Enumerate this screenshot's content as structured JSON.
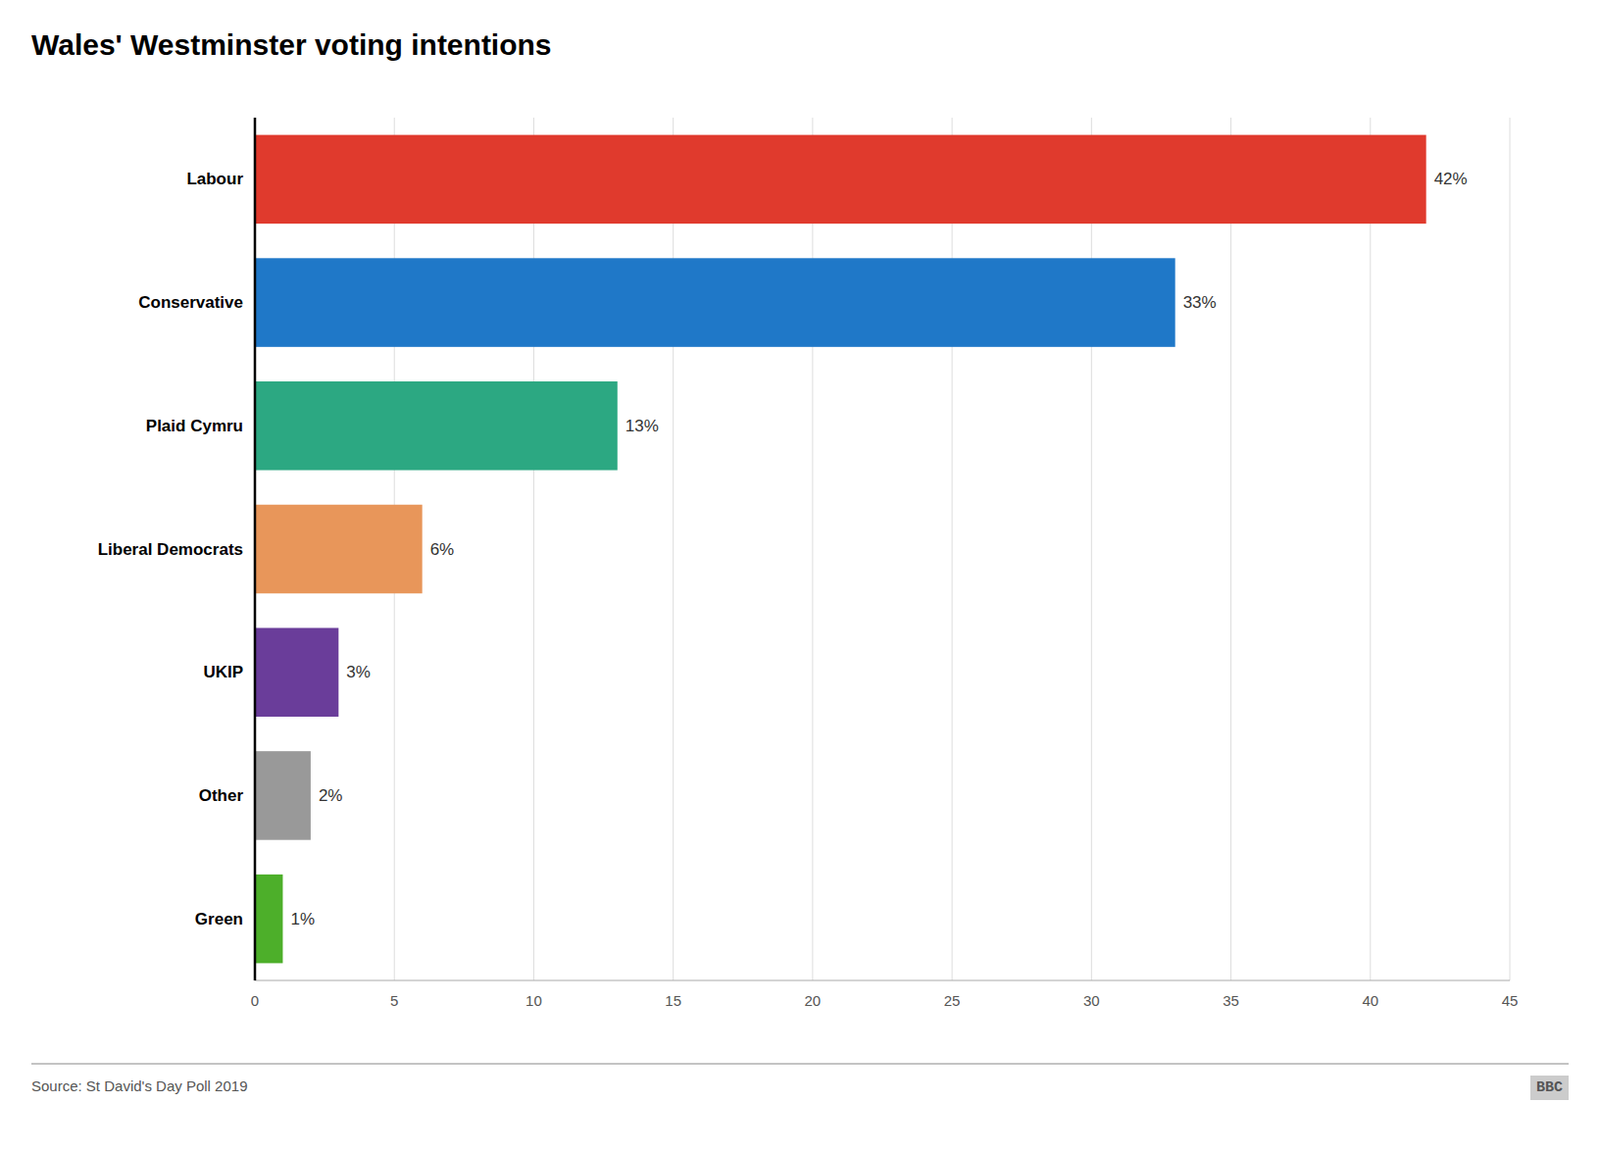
{
  "chart_data": {
    "type": "bar",
    "orientation": "horizontal",
    "title": "Wales' Westminster voting intentions",
    "categories": [
      "Labour",
      "Conservative",
      "Plaid Cymru",
      "Liberal Democrats",
      "UKIP",
      "Other",
      "Green"
    ],
    "values": [
      42,
      33,
      13,
      6,
      3,
      2,
      1
    ],
    "value_labels": [
      "42%",
      "33%",
      "13%",
      "6%",
      "3%",
      "2%",
      "1%"
    ],
    "data_labels": true,
    "colors": [
      "#e03a2d",
      "#1f78c8",
      "#2ca882",
      "#e8965a",
      "#6a3d9a",
      "#999999",
      "#4daf2a"
    ],
    "xlim": [
      0,
      45
    ],
    "xticks": [
      0,
      5,
      10,
      15,
      20,
      25,
      30,
      35,
      40,
      45
    ],
    "grid": true,
    "annotations": [
      "Source: St David's Day Poll 2019",
      "BBC"
    ]
  }
}
